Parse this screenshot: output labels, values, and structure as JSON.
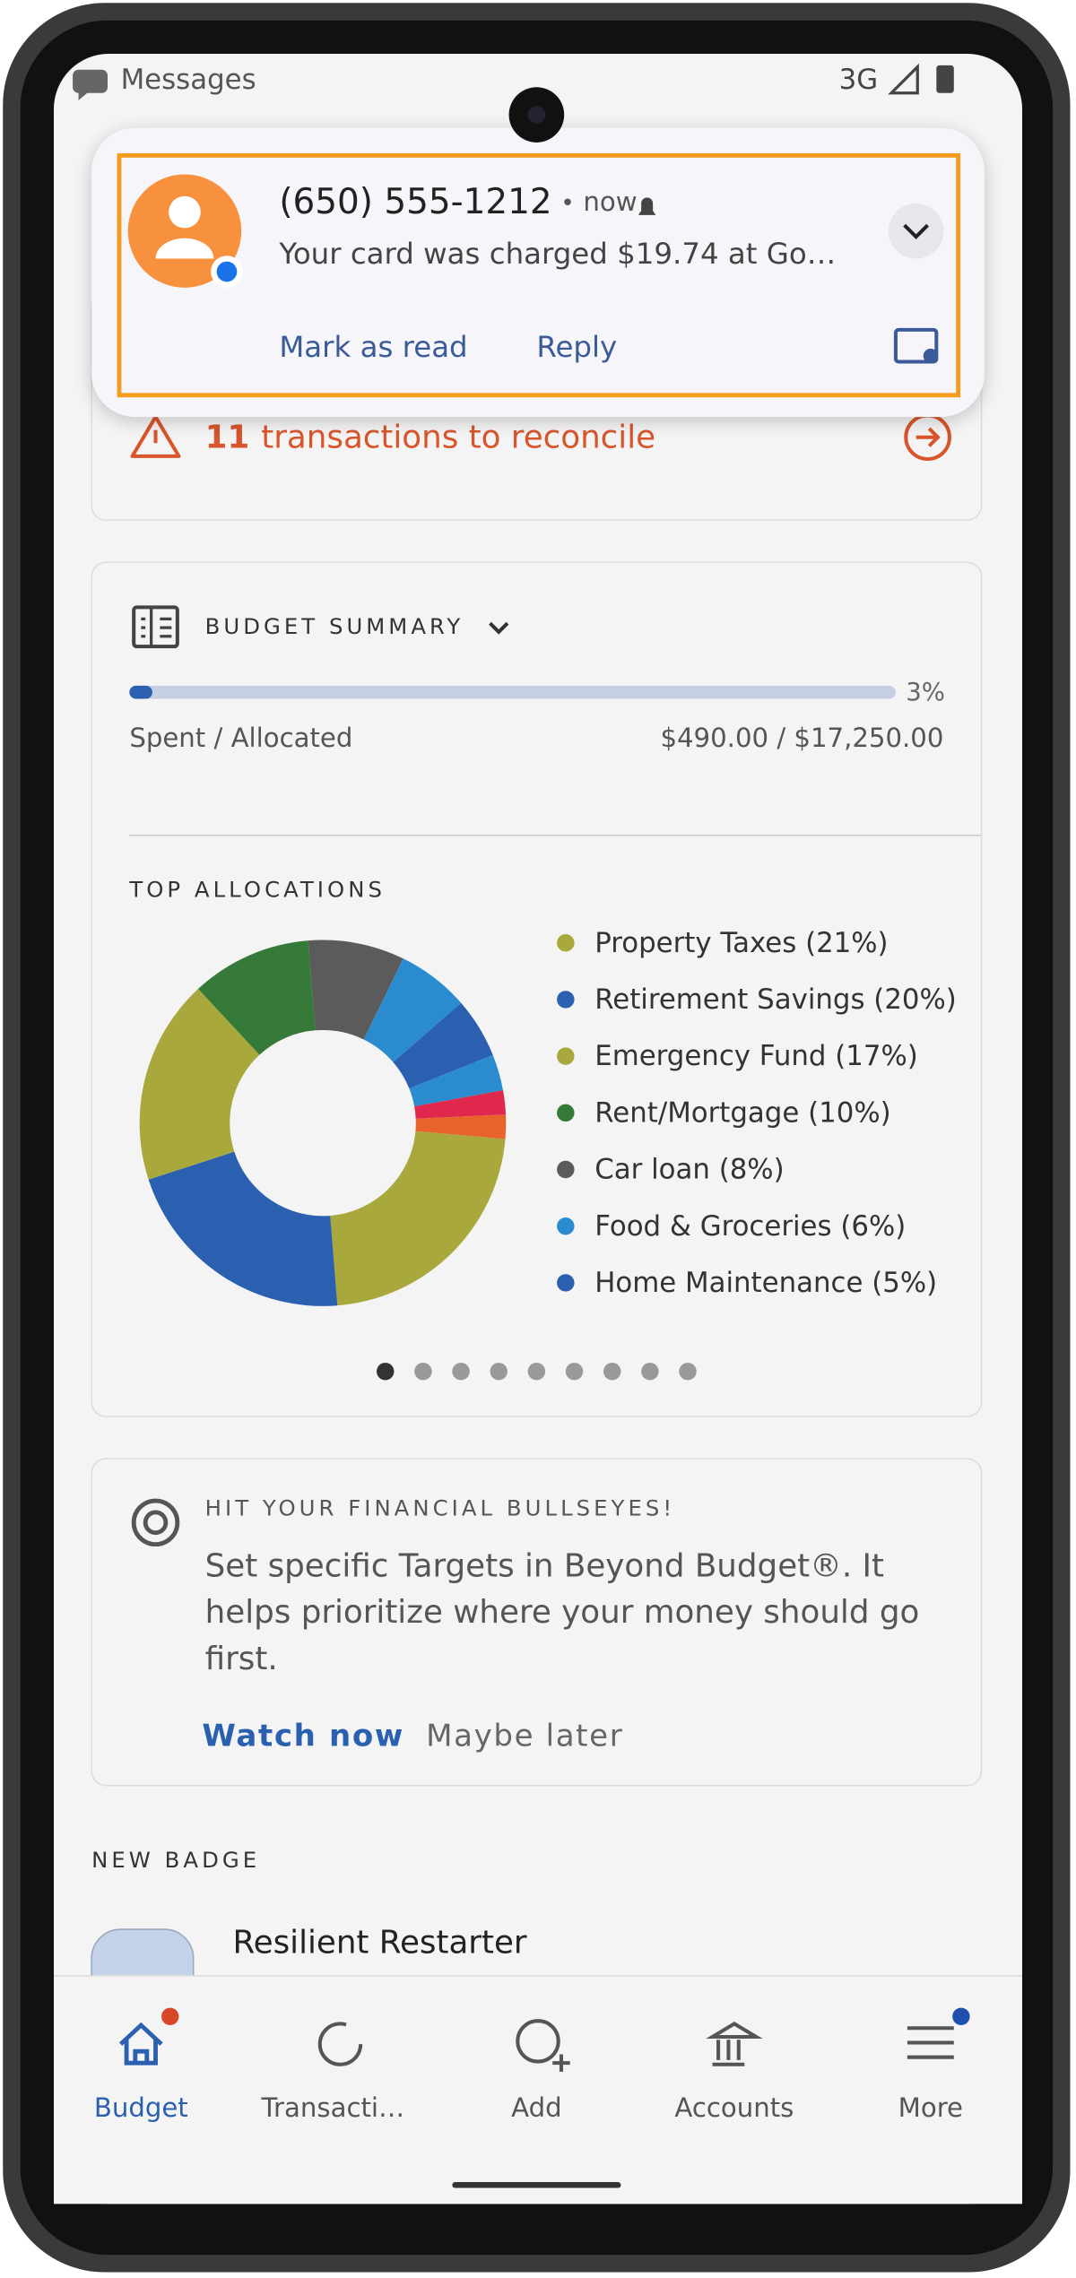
{
  "status_bar": {
    "app": "Messages",
    "network": "3G"
  },
  "notification": {
    "sender": "(650) 555-1212",
    "separator": "•",
    "time": "now",
    "message": "Your card was charged $19.74 at Go…",
    "actions": [
      "Mark as read",
      "Reply"
    ]
  },
  "reconcile": {
    "count": 11,
    "text": "transactions to reconcile"
  },
  "budget_summary": {
    "title": "BUDGET SUMMARY",
    "progress": 3,
    "progress_label": "3%",
    "spent_label": "Spent / Allocated",
    "amounts": "$490.00 / $17,250.00"
  },
  "top_allocations": {
    "title": "TOP ALLOCATIONS",
    "slices": [
      {
        "label": "Property Taxes (21%)",
        "value": 21,
        "color": "#a8a83c"
      },
      {
        "label": "Retirement Savings (20%)",
        "value": 20,
        "color": "#2b5fb0"
      },
      {
        "label": "Emergency Fund (17%)",
        "value": 17,
        "color": "#a8a83c"
      },
      {
        "label": "Rent/Mortgage (10%)",
        "value": 10,
        "color": "#357a38"
      },
      {
        "label": "Car loan (8%)",
        "value": 8,
        "color": "#5b5b5b"
      },
      {
        "label": "Food & Groceries (6%)",
        "value": 6,
        "color": "#2a8ccf"
      },
      {
        "label": "Home Maintenance (5%)",
        "value": 5,
        "color": "#2b5fb0"
      },
      {
        "label": null,
        "value": 3,
        "color": "#2a8ccf"
      },
      {
        "label": null,
        "value": 2,
        "color": "#e0284f"
      },
      {
        "label": null,
        "value": 2,
        "color": "#e8632b"
      }
    ]
  },
  "bullseye": {
    "title": "HIT YOUR FINANCIAL BULLSEYES!",
    "text": "Set specific Targets in Beyond Budget®. It helps prioritize where your money should go first.",
    "actions": [
      "Watch now",
      "Maybe later"
    ]
  },
  "new_badge": {
    "title": "NEW BADGE",
    "name": "Resilient Restarter"
  },
  "nav": [
    "Budget",
    "Transacti…",
    "Add",
    "Accounts",
    "More"
  ]
}
